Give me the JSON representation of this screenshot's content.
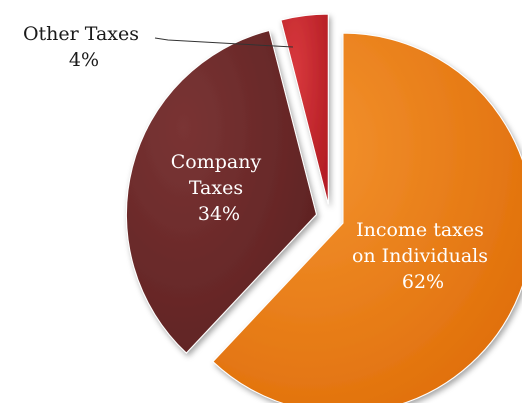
{
  "chart_data": {
    "type": "pie",
    "title": "",
    "slices": [
      {
        "label_lines": [
          "Income taxes",
          "on Individuals"
        ],
        "value": 62,
        "value_label": "62%",
        "color": "#ea7a12"
      },
      {
        "label_lines": [
          "Company",
          "Taxes"
        ],
        "value": 34,
        "value_label": "34%",
        "color": "#6b2a2a"
      },
      {
        "label_lines": [
          "Other Taxes"
        ],
        "value": 4,
        "value_label": "4%",
        "color": "#c8262c"
      }
    ],
    "exploded": true,
    "legend": "none",
    "label_style": "inside, Other Taxes outside with leader line"
  }
}
